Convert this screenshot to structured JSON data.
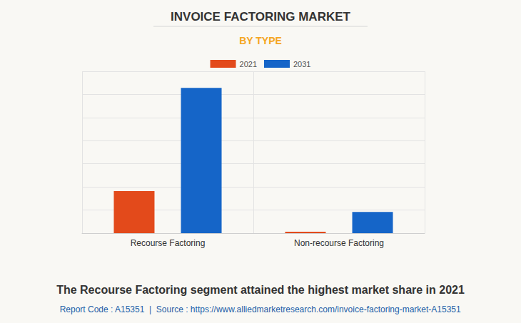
{
  "chart_data": {
    "type": "bar",
    "title": "INVOICE FACTORING MARKET",
    "subtitle": "BY TYPE",
    "annotations": [
      "The Recourse Factoring segment attained the highest market share in 2021",
      "Report Code : A15351  |  Source : https://www.alliedmarketresearch.com/invoice-factoring-market-A15351"
    ],
    "categories": [
      "Recourse Factoring",
      "Non-recourse Factoring"
    ],
    "series": [
      {
        "name": "2021",
        "color": "#e34a1b",
        "values": [
          1.82,
          0.06
        ]
      },
      {
        "name": "2031",
        "color": "#1565c8",
        "values": [
          6.28,
          0.92
        ]
      }
    ],
    "ylim": [
      0,
      7
    ],
    "yticks": [
      0,
      1,
      2,
      3,
      4,
      5,
      6,
      7
    ],
    "grid": true,
    "legend": "top",
    "tick_labels": "x"
  }
}
